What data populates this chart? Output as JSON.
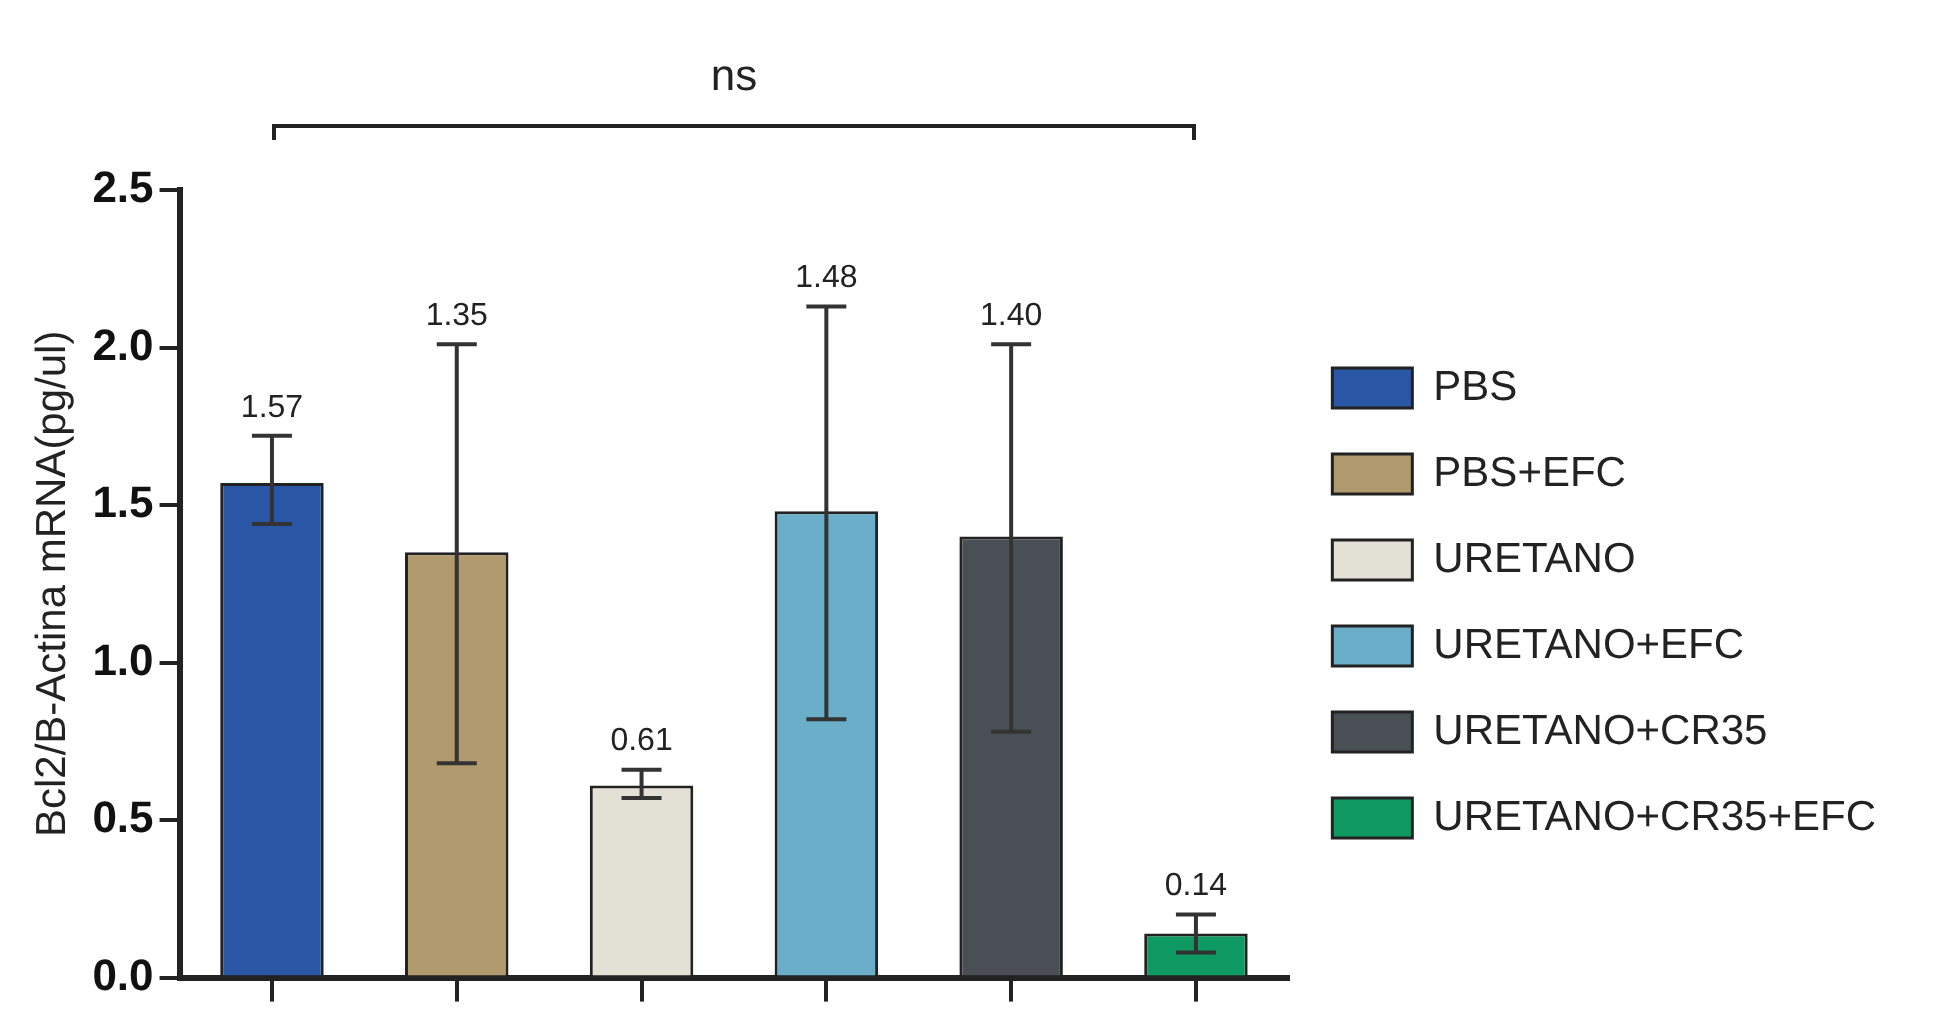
{
  "chart_data": {
    "type": "bar",
    "ylabel": "Bcl2/B-Actina mRNA(pg/ul)",
    "categories": [
      null,
      null,
      null,
      null,
      null,
      null
    ],
    "series": [
      {
        "name": "PBS",
        "color": "#2a56a6",
        "values": [
          1.57,
          null,
          null,
          null,
          null,
          null
        ],
        "errors": [
          [
            1.44,
            1.72
          ],
          null,
          null,
          null,
          null,
          null
        ]
      },
      {
        "name": "PBS+EFC",
        "color": "#b09a6e",
        "values": [
          null,
          1.35,
          null,
          null,
          null,
          null
        ],
        "errors": [
          null,
          [
            0.68,
            2.01
          ],
          null,
          null,
          null,
          null
        ]
      },
      {
        "name": "URETANO",
        "color": "#e3e0d6",
        "values": [
          null,
          null,
          0.61,
          null,
          null,
          null
        ],
        "errors": [
          null,
          null,
          [
            0.57,
            0.66
          ],
          null,
          null,
          null
        ]
      },
      {
        "name": "URETANO+EFC",
        "color": "#6aaec9",
        "values": [
          null,
          null,
          null,
          1.48,
          null,
          null
        ],
        "errors": [
          null,
          null,
          null,
          [
            0.82,
            2.13
          ],
          null,
          null
        ]
      },
      {
        "name": "URETANO+CR35",
        "color": "#4a4e55",
        "values": [
          null,
          null,
          null,
          null,
          1.4,
          null
        ],
        "errors": [
          null,
          null,
          null,
          null,
          [
            0.78,
            2.01
          ],
          null
        ]
      },
      {
        "name": "URETANO+CR35+EFC",
        "color": "#0f9a63",
        "values": [
          null,
          null,
          null,
          null,
          null,
          0.14
        ],
        "errors": [
          null,
          null,
          null,
          null,
          null,
          [
            0.08,
            0.2
          ]
        ]
      }
    ],
    "ylim": [
      0,
      2.5
    ],
    "yticks": [
      {
        "value": 0,
        "label": "0.0"
      },
      {
        "value": 0.5,
        "label": "0.5"
      },
      {
        "value": 1,
        "label": "1.0"
      },
      {
        "value": 1.5,
        "label": "1.5"
      },
      {
        "value": 2,
        "label": "2.0"
      },
      {
        "value": 2.5,
        "label": "2.5"
      }
    ],
    "value_labels": [
      "1.57",
      "1.35",
      "0.61",
      "1.48",
      "1.40",
      "0.14"
    ],
    "grid": false,
    "legend": "right",
    "annotations": [
      "ns"
    ]
  }
}
